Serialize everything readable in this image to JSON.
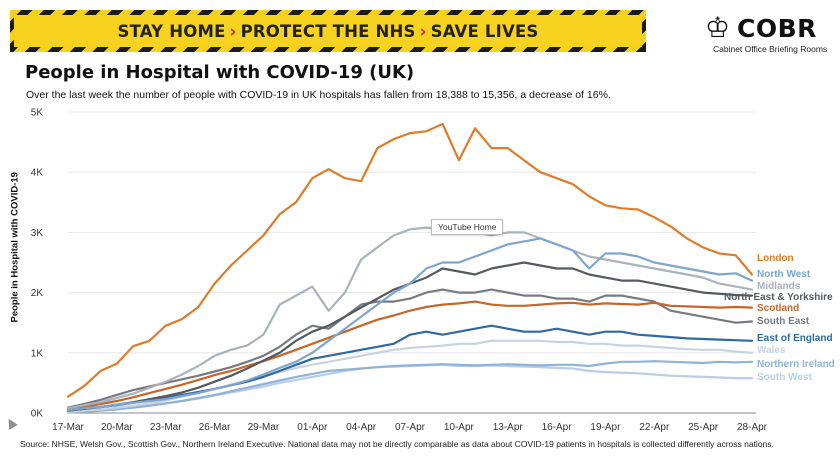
{
  "banner": {
    "part1": "STAY HOME",
    "part2": "PROTECT THE NHS",
    "part3": "SAVE LIVES",
    "chevron": "›"
  },
  "logo": {
    "word": "COBR",
    "sub": "Cabinet Office Briefing Rooms",
    "icon": "royal-crest-icon"
  },
  "header": {
    "title": "People in Hospital with COVID-19 (UK)",
    "subtitle": "Over the last week the number of people with COVID-19 in UK hospitals has fallen from 18,388 to 15,356, a decrease of 16%."
  },
  "tooltip": "YouTube Home",
  "source": "Source: NHSE, Welsh Gov., Scottish Gov., Northern Ireland Executive. National data may not be directly comparable as data about COVID-19 patients in hospitals is collected differently across nations.",
  "chart_data": {
    "type": "line",
    "ylabel": "People in Hospital with COVID-19",
    "xlabel": "",
    "ylim": [
      0,
      5000
    ],
    "yticks": [
      0,
      1000,
      2000,
      3000,
      4000,
      5000
    ],
    "ytick_labels": [
      "0K",
      "1K",
      "2K",
      "3K",
      "4K",
      "5K"
    ],
    "x": [
      "17-Mar",
      "18-Mar",
      "19-Mar",
      "20-Mar",
      "21-Mar",
      "22-Mar",
      "23-Mar",
      "24-Mar",
      "25-Mar",
      "26-Mar",
      "27-Mar",
      "28-Mar",
      "29-Mar",
      "30-Mar",
      "31-Mar",
      "01-Apr",
      "02-Apr",
      "03-Apr",
      "04-Apr",
      "05-Apr",
      "06-Apr",
      "07-Apr",
      "08-Apr",
      "09-Apr",
      "10-Apr",
      "11-Apr",
      "12-Apr",
      "13-Apr",
      "14-Apr",
      "15-Apr",
      "16-Apr",
      "17-Apr",
      "18-Apr",
      "19-Apr",
      "20-Apr",
      "21-Apr",
      "22-Apr",
      "23-Apr",
      "24-Apr",
      "25-Apr",
      "26-Apr",
      "27-Apr",
      "28-Apr"
    ],
    "xtick_labels": [
      "17-Mar",
      "20-Mar",
      "23-Mar",
      "26-Mar",
      "29-Mar",
      "01-Apr",
      "04-Apr",
      "07-Apr",
      "10-Apr",
      "13-Apr",
      "16-Apr",
      "19-Apr",
      "22-Apr",
      "25-Apr",
      "28-Apr"
    ],
    "grid": "horizontal",
    "legend": "right-end labels",
    "series": [
      {
        "name": "London",
        "color": "#e07b27",
        "values": [
          270,
          450,
          700,
          820,
          1110,
          1200,
          1450,
          1560,
          1760,
          2150,
          2450,
          2700,
          2950,
          3300,
          3500,
          3900,
          4050,
          3900,
          3850,
          4400,
          4550,
          4650,
          4680,
          4800,
          4200,
          4730,
          4400,
          4400,
          4200,
          4000,
          3900,
          3800,
          3600,
          3450,
          3400,
          3380,
          3250,
          3100,
          2900,
          2750,
          2650,
          2620,
          2300
        ]
      },
      {
        "name": "North West",
        "color": "#7ea6cc",
        "values": [
          50,
          80,
          100,
          140,
          170,
          200,
          230,
          280,
          330,
          400,
          460,
          540,
          640,
          750,
          850,
          1000,
          1200,
          1400,
          1600,
          1800,
          2000,
          2150,
          2400,
          2500,
          2500,
          2600,
          2700,
          2800,
          2850,
          2900,
          2800,
          2700,
          2400,
          2650,
          2650,
          2600,
          2500,
          2450,
          2400,
          2350,
          2300,
          2320,
          2200
        ]
      },
      {
        "name": "Midlands",
        "color": "#aab2bc",
        "values": [
          80,
          130,
          180,
          250,
          320,
          420,
          520,
          640,
          780,
          950,
          1050,
          1120,
          1300,
          1800,
          1950,
          2100,
          1700,
          2000,
          2550,
          2750,
          2950,
          3050,
          3080,
          3050,
          3000,
          3000,
          2950,
          3000,
          3000,
          2900,
          2800,
          2700,
          2600,
          2550,
          2500,
          2450,
          2400,
          2350,
          2300,
          2250,
          2150,
          2100,
          2050
        ]
      },
      {
        "name": "North East & Yorkshire",
        "color": "#555a60",
        "values": [
          40,
          70,
          100,
          140,
          180,
          230,
          280,
          340,
          420,
          520,
          620,
          740,
          870,
          1000,
          1200,
          1350,
          1450,
          1600,
          1750,
          1900,
          2050,
          2150,
          2250,
          2400,
          2350,
          2300,
          2400,
          2450,
          2500,
          2450,
          2400,
          2400,
          2300,
          2250,
          2200,
          2200,
          2150,
          2100,
          2050,
          2000,
          1980,
          1960,
          1950
        ]
      },
      {
        "name": "Scotland",
        "color": "#c4672a",
        "values": [
          60,
          100,
          150,
          200,
          260,
          330,
          400,
          470,
          550,
          630,
          700,
          780,
          860,
          950,
          1050,
          1150,
          1250,
          1350,
          1450,
          1550,
          1620,
          1700,
          1760,
          1800,
          1820,
          1850,
          1800,
          1780,
          1780,
          1800,
          1820,
          1830,
          1800,
          1820,
          1810,
          1800,
          1830,
          1780,
          1770,
          1760,
          1750,
          1760,
          1750
        ]
      },
      {
        "name": "South East",
        "color": "#777a80",
        "values": [
          90,
          150,
          220,
          300,
          380,
          440,
          500,
          560,
          620,
          690,
          760,
          850,
          950,
          1100,
          1300,
          1450,
          1400,
          1600,
          1800,
          1850,
          1850,
          1900,
          2000,
          2050,
          2000,
          2000,
          2050,
          2000,
          1950,
          1950,
          1900,
          1900,
          1850,
          1950,
          1950,
          1900,
          1850,
          1700,
          1650,
          1600,
          1550,
          1500,
          1520
        ]
      },
      {
        "name": "East of England",
        "color": "#2e6a9e",
        "values": [
          50,
          70,
          100,
          130,
          170,
          210,
          250,
          300,
          350,
          400,
          460,
          520,
          600,
          700,
          800,
          900,
          950,
          1000,
          1050,
          1100,
          1150,
          1300,
          1350,
          1300,
          1350,
          1400,
          1450,
          1400,
          1350,
          1350,
          1400,
          1350,
          1300,
          1350,
          1350,
          1300,
          1280,
          1260,
          1240,
          1230,
          1220,
          1210,
          1200
        ]
      },
      {
        "name": "Wales",
        "color": "#c9d3df",
        "values": [
          20,
          40,
          60,
          90,
          120,
          160,
          210,
          270,
          330,
          400,
          470,
          540,
          610,
          680,
          750,
          800,
          850,
          900,
          950,
          1000,
          1050,
          1080,
          1100,
          1120,
          1150,
          1150,
          1200,
          1200,
          1200,
          1200,
          1180,
          1180,
          1150,
          1150,
          1120,
          1120,
          1100,
          1080,
          1060,
          1050,
          1050,
          1020,
          1000
        ]
      },
      {
        "name": "Northern Ireland",
        "color": "#8fb3d6",
        "values": [
          10,
          20,
          40,
          60,
          90,
          120,
          160,
          200,
          250,
          300,
          360,
          420,
          480,
          540,
          600,
          650,
          700,
          720,
          740,
          760,
          780,
          790,
          800,
          810,
          800,
          790,
          800,
          810,
          800,
          790,
          800,
          800,
          780,
          820,
          850,
          850,
          860,
          850,
          840,
          830,
          850,
          840,
          850
        ]
      },
      {
        "name": "South West",
        "color": "#b8cee6",
        "values": [
          20,
          40,
          60,
          80,
          100,
          130,
          160,
          200,
          240,
          290,
          340,
          390,
          440,
          500,
          550,
          600,
          650,
          700,
          740,
          760,
          770,
          780,
          790,
          800,
          780,
          780,
          790,
          780,
          770,
          760,
          750,
          740,
          700,
          680,
          670,
          660,
          640,
          620,
          610,
          600,
          590,
          580,
          580
        ]
      }
    ]
  }
}
